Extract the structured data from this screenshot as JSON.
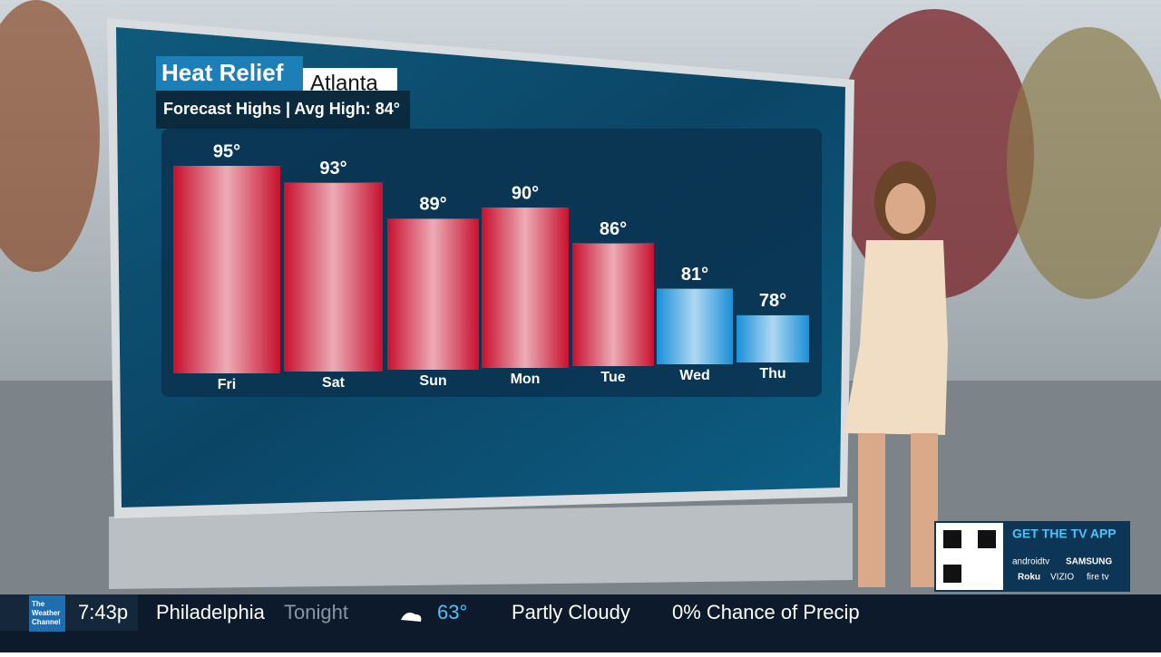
{
  "chart_data": {
    "type": "bar",
    "title": "Heat Relief",
    "location": "Atlanta",
    "subtitle": "Forecast Highs | Avg High: 84°",
    "categories": [
      "Fri",
      "Sat",
      "Sun",
      "Mon",
      "Tue",
      "Wed",
      "Thu"
    ],
    "values": [
      95,
      93,
      89,
      90,
      86,
      81,
      78
    ],
    "value_labels": [
      "95°",
      "93°",
      "89°",
      "90°",
      "86°",
      "81°",
      "78°"
    ],
    "colors": [
      "#c8102e",
      "#c8102e",
      "#c8102e",
      "#c8102e",
      "#c8102e",
      "#1a8fd8",
      "#1a8fd8"
    ],
    "ylim": [
      73,
      97
    ]
  },
  "ticker": {
    "logo": [
      "The",
      "Weather",
      "Channel"
    ],
    "time": "7:43p",
    "city": "Philadelphia",
    "period": "Tonight",
    "temperature": "63°",
    "condition": "Partly Cloudy",
    "precip": "0% Chance of Precip"
  },
  "promo": {
    "title": "GET THE TV APP",
    "platforms": [
      "androidtv",
      "SAMSUNG",
      "Roku",
      "VIZIO",
      "fire tv"
    ]
  }
}
